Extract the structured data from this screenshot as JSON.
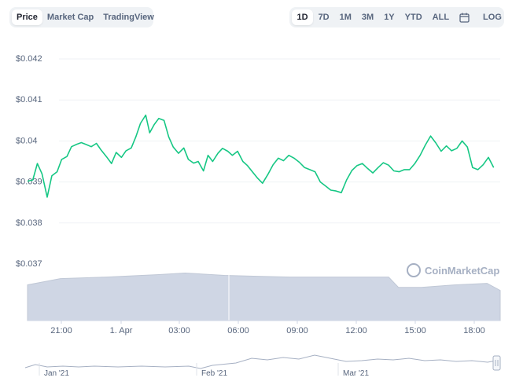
{
  "toolbar": {
    "left_tabs": [
      "Price",
      "Market Cap",
      "TradingView"
    ],
    "left_active": "Price",
    "right_tabs": [
      "1D",
      "7D",
      "1M",
      "3M",
      "1Y",
      "YTD",
      "ALL"
    ],
    "right_active": "1D",
    "calendar_icon": "calendar-icon",
    "log_label": "LOG"
  },
  "watermark": "CoinMarketCap",
  "colors": {
    "price_line": "#16c784",
    "volume_fill": "#cfd6e4",
    "grid": "#eff2f5"
  },
  "chart_data": {
    "type": "line",
    "y_ticks": [
      "$0.042",
      "$0.041",
      "$0.04",
      "$0.039",
      "$0.038",
      "$0.037"
    ],
    "ylim": [
      0.037,
      0.042
    ],
    "x_ticks": [
      "21:00",
      "1. Apr",
      "03:00",
      "06:00",
      "09:00",
      "12:00",
      "15:00",
      "18:00"
    ],
    "price_series": [
      [
        0.0,
        0.03902
      ],
      [
        0.008,
        0.03905
      ],
      [
        0.015,
        0.03945
      ],
      [
        0.022,
        0.0392
      ],
      [
        0.03,
        0.03863
      ],
      [
        0.037,
        0.03915
      ],
      [
        0.045,
        0.03925
      ],
      [
        0.052,
        0.03955
      ],
      [
        0.06,
        0.03962
      ],
      [
        0.067,
        0.03986
      ],
      [
        0.075,
        0.03992
      ],
      [
        0.082,
        0.03996
      ],
      [
        0.09,
        0.03991
      ],
      [
        0.097,
        0.03986
      ],
      [
        0.105,
        0.03994
      ],
      [
        0.112,
        0.03978
      ],
      [
        0.12,
        0.03962
      ],
      [
        0.128,
        0.03945
      ],
      [
        0.135,
        0.03972
      ],
      [
        0.143,
        0.0396
      ],
      [
        0.15,
        0.03976
      ],
      [
        0.158,
        0.03983
      ],
      [
        0.165,
        0.0401
      ],
      [
        0.172,
        0.04043
      ],
      [
        0.18,
        0.04063
      ],
      [
        0.186,
        0.0402
      ],
      [
        0.193,
        0.0404
      ],
      [
        0.2,
        0.04055
      ],
      [
        0.208,
        0.0405
      ],
      [
        0.215,
        0.0401
      ],
      [
        0.222,
        0.03985
      ],
      [
        0.23,
        0.0397
      ],
      [
        0.238,
        0.03983
      ],
      [
        0.245,
        0.03955
      ],
      [
        0.253,
        0.03946
      ],
      [
        0.26,
        0.0395
      ],
      [
        0.268,
        0.03927
      ],
      [
        0.275,
        0.03965
      ],
      [
        0.282,
        0.0395
      ],
      [
        0.29,
        0.0397
      ],
      [
        0.297,
        0.03982
      ],
      [
        0.305,
        0.03975
      ],
      [
        0.312,
        0.03965
      ],
      [
        0.32,
        0.03975
      ],
      [
        0.328,
        0.0395
      ],
      [
        0.335,
        0.0394
      ],
      [
        0.343,
        0.03924
      ],
      [
        0.35,
        0.0391
      ],
      [
        0.358,
        0.03897
      ],
      [
        0.366,
        0.03918
      ],
      [
        0.374,
        0.03942
      ],
      [
        0.382,
        0.03958
      ],
      [
        0.39,
        0.03952
      ],
      [
        0.398,
        0.03965
      ],
      [
        0.406,
        0.03958
      ],
      [
        0.414,
        0.03948
      ],
      [
        0.422,
        0.03935
      ],
      [
        0.43,
        0.0393
      ],
      [
        0.438,
        0.03925
      ],
      [
        0.446,
        0.039
      ],
      [
        0.454,
        0.0389
      ],
      [
        0.462,
        0.0388
      ],
      [
        0.47,
        0.03878
      ],
      [
        0.478,
        0.03874
      ],
      [
        0.486,
        0.03905
      ],
      [
        0.494,
        0.03928
      ],
      [
        0.502,
        0.0394
      ],
      [
        0.51,
        0.03945
      ],
      [
        0.518,
        0.03933
      ],
      [
        0.526,
        0.03922
      ],
      [
        0.534,
        0.03935
      ],
      [
        0.542,
        0.03947
      ],
      [
        0.55,
        0.03941
      ],
      [
        0.558,
        0.03927
      ],
      [
        0.566,
        0.03925
      ],
      [
        0.574,
        0.0393
      ],
      [
        0.582,
        0.0393
      ],
      [
        0.59,
        0.03945
      ],
      [
        0.598,
        0.03965
      ],
      [
        0.606,
        0.0399
      ],
      [
        0.614,
        0.04012
      ],
      [
        0.622,
        0.03995
      ],
      [
        0.63,
        0.03975
      ],
      [
        0.638,
        0.03988
      ],
      [
        0.646,
        0.03976
      ],
      [
        0.654,
        0.03982
      ],
      [
        0.662,
        0.04
      ],
      [
        0.67,
        0.03985
      ],
      [
        0.678,
        0.03935
      ],
      [
        0.686,
        0.0393
      ],
      [
        0.694,
        0.03942
      ],
      [
        0.702,
        0.0396
      ],
      [
        0.71,
        0.03935
      ]
    ],
    "volume_series": [
      [
        0.0,
        0.45
      ],
      [
        0.05,
        0.53
      ],
      [
        0.12,
        0.55
      ],
      [
        0.2,
        0.58
      ],
      [
        0.24,
        0.6
      ],
      [
        0.3,
        0.57
      ],
      [
        0.35,
        0.56
      ],
      [
        0.4,
        0.55
      ],
      [
        0.45,
        0.55
      ],
      [
        0.5,
        0.55
      ],
      [
        0.55,
        0.55
      ],
      [
        0.565,
        0.42
      ],
      [
        0.6,
        0.42
      ],
      [
        0.65,
        0.45
      ],
      [
        0.7,
        0.47
      ],
      [
        0.72,
        0.38
      ]
    ],
    "navigator_labels": [
      "Jan '21",
      "Feb '21",
      "Mar '21"
    ]
  }
}
